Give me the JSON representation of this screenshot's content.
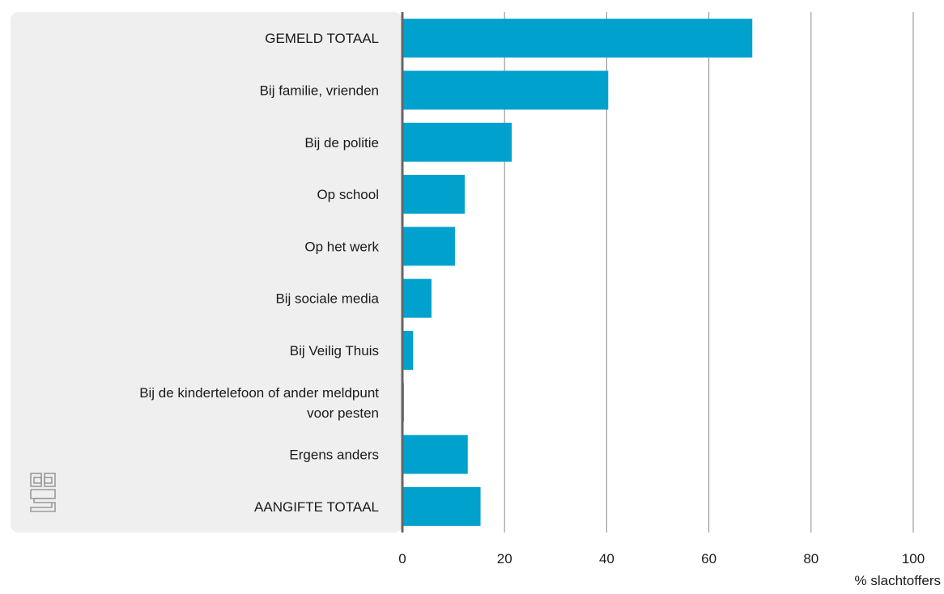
{
  "chart_data": {
    "type": "bar",
    "orientation": "horizontal",
    "categories": [
      [
        "GEMELD TOTAAL"
      ],
      [
        "Bij familie, vrienden"
      ],
      [
        "Bij de politie"
      ],
      [
        "Op school"
      ],
      [
        "Op het werk"
      ],
      [
        "Bij sociale media"
      ],
      [
        "Bij Veilig Thuis"
      ],
      [
        "Bij de kindertelefoon of ander meldpunt",
        "voor pesten"
      ],
      [
        "Ergens anders"
      ],
      [
        "AANGIFTE TOTAAL"
      ]
    ],
    "values": [
      68.5,
      40.3,
      21.4,
      12.2,
      10.3,
      5.7,
      2.1,
      0.3,
      12.8,
      15.3
    ],
    "xlabel": "% slachtoffers",
    "ylabel": "",
    "xlim": [
      0,
      100
    ],
    "xticks": [
      0,
      20,
      40,
      60,
      80,
      100
    ],
    "grid": true,
    "colors": {
      "bar": "#00a1cd",
      "panel": "#efefef",
      "axis": "#666666",
      "grid": "#8a8a8a",
      "logo": "#9a9a9a"
    }
  },
  "logo": {
    "name": "cbs-logo-icon"
  }
}
